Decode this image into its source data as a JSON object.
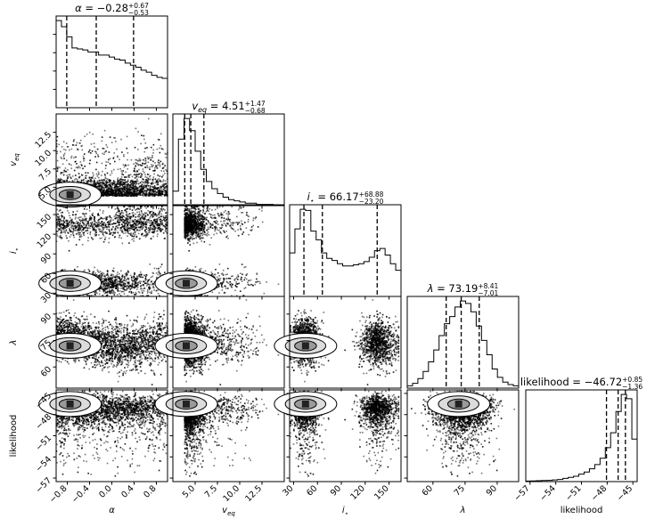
{
  "chart_data": {
    "type": "corner",
    "parameters": [
      {
        "key": "alpha",
        "label": "α",
        "range": [
          -1.0,
          1.0
        ],
        "ticks": [
          -0.8,
          -0.4,
          0.0,
          0.4,
          0.8
        ],
        "tick_labels": [
          "−0.8",
          "−0.4",
          "0.0",
          "0.4",
          "0.8"
        ],
        "title_value": "−0.28",
        "err_plus": "+0.67",
        "err_minus": "−0.53",
        "quantiles": [
          -0.81,
          -0.28,
          0.39
        ],
        "hist": [
          86,
          80,
          70,
          59,
          58,
          57,
          55,
          55,
          52,
          52,
          50,
          48,
          47,
          44,
          42,
          40,
          37,
          35,
          32,
          30,
          29
        ]
      },
      {
        "key": "veq",
        "label": "v_eq",
        "label_main": "v",
        "label_sub": "eq",
        "range": [
          2.5,
          15.0
        ],
        "ticks": [
          5.0,
          7.5,
          10.0,
          12.5
        ],
        "tick_labels": [
          "5.0",
          "7.5",
          "10.0",
          "12.5"
        ],
        "title_value": "4.51",
        "err_plus": "+1.47",
        "err_minus": "−0.68",
        "quantiles": [
          3.83,
          4.51,
          5.98
        ],
        "hist": [
          12,
          55,
          72,
          62,
          45,
          30,
          20,
          14,
          10,
          7,
          5,
          4,
          3,
          2,
          2,
          1,
          1,
          1,
          0.6,
          0.5
        ]
      },
      {
        "key": "i",
        "label": "i⋆",
        "label_main": "i",
        "label_sub": "⋆",
        "range": [
          25,
          165
        ],
        "ticks": [
          30,
          60,
          90,
          120,
          150
        ],
        "tick_labels": [
          "30",
          "60",
          "90",
          "120",
          "150"
        ],
        "title_value": "66.17",
        "err_plus": "+68.88",
        "err_minus": "−23.20",
        "quantiles": [
          42.97,
          66.17,
          135.05
        ],
        "hist": [
          40,
          62,
          80,
          79,
          60,
          52,
          40,
          35,
          33,
          30,
          28,
          28,
          29,
          30,
          32,
          36,
          42,
          44,
          38,
          30,
          24
        ]
      },
      {
        "key": "lambda",
        "label": "λ",
        "range": [
          48,
          100
        ],
        "ticks": [
          60,
          75,
          90
        ],
        "tick_labels": [
          "60",
          "75",
          "90"
        ],
        "title_value": "73.19",
        "err_plus": "+8.41",
        "err_minus": "−7.01",
        "quantiles": [
          66.18,
          73.19,
          81.6
        ],
        "hist": [
          2,
          4,
          8,
          14,
          22,
          32,
          44,
          54,
          60,
          68,
          73,
          71,
          64,
          52,
          40,
          28,
          16,
          9,
          5,
          3,
          2
        ]
      },
      {
        "key": "likelihood",
        "label": "likelihood",
        "range": [
          -57.5,
          -44.5
        ],
        "ticks": [
          -57,
          -54,
          -51,
          -48,
          -45
        ],
        "tick_labels": [
          "−57",
          "−54",
          "−51",
          "−48",
          "−45"
        ],
        "title_value": "−46.72",
        "err_plus": "+0.85",
        "err_minus": "−1.36",
        "quantiles": [
          -48.08,
          -46.72,
          -45.87
        ],
        "hist": [
          0.5,
          0.6,
          0.8,
          1,
          1.2,
          1.6,
          2,
          3,
          4,
          5,
          7,
          9,
          12,
          16,
          22,
          32,
          46,
          66,
          82,
          78,
          40
        ]
      }
    ],
    "axis_labels": [
      "α",
      "v_eq",
      "i⋆",
      "λ",
      "likelihood"
    ],
    "y_labels": [
      "v_eq",
      "i⋆",
      "λ",
      "likelihood"
    ],
    "ytick_labels": {
      "veq": [
        "5.0",
        "7.5",
        "10.0",
        "12.5"
      ],
      "i": [
        "30",
        "60",
        "90",
        "120",
        "150"
      ],
      "lambda": [
        "60",
        "75",
        "90"
      ],
      "likelihood": [
        "−57",
        "−54",
        "−51",
        "−48",
        "−45"
      ]
    },
    "title_prefix": " = ",
    "style": {
      "line_color": "#000000",
      "background": "#ffffff"
    }
  }
}
